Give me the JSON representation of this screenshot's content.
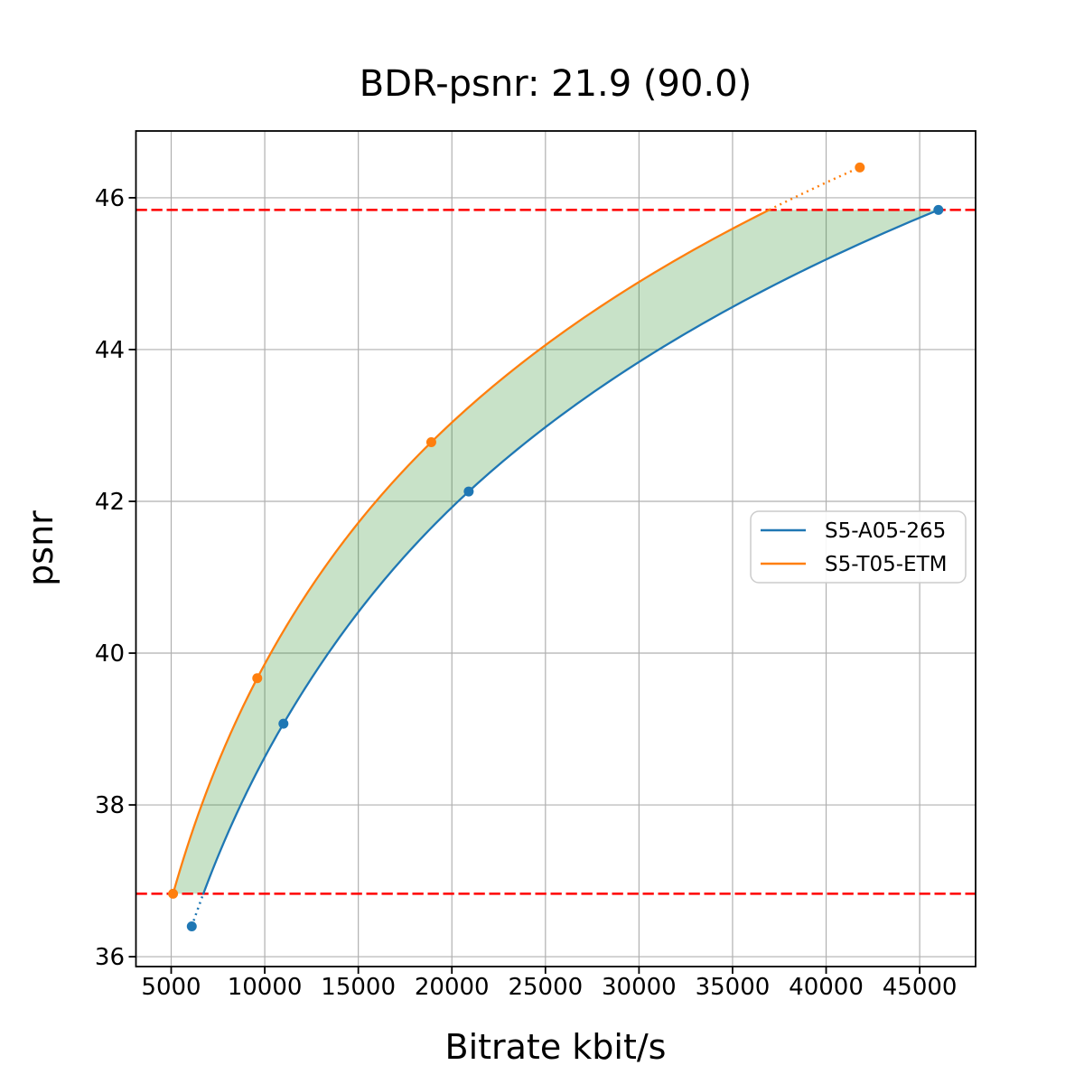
{
  "chart_data": {
    "type": "line",
    "title": "BDR-psnr: 21.9 (90.0)",
    "xlabel": "Bitrate kbit/s",
    "ylabel": "psnr",
    "xlim": [
      3117,
      47988
    ],
    "ylim": [
      35.87,
      46.88
    ],
    "xticks": [
      5000,
      10000,
      15000,
      20000,
      25000,
      30000,
      35000,
      40000,
      45000
    ],
    "yticks": [
      36,
      38,
      40,
      42,
      44,
      46
    ],
    "grid": true,
    "grid_color": "#b0b0b0",
    "legend_position": "center-right",
    "series": [
      {
        "name": "S5-A05-265",
        "color": "#1f77b4",
        "x": [
          6100,
          11000,
          20900,
          46000
        ],
        "y": [
          36.4,
          39.07,
          42.13,
          45.84
        ]
      },
      {
        "name": "S5-T05-ETM",
        "color": "#ff7f0e",
        "x": [
          5100,
          9600,
          18900,
          41800
        ],
        "y": [
          36.83,
          39.67,
          42.78,
          46.4
        ]
      }
    ],
    "overlap_interval_psnr": [
      36.83,
      45.84
    ],
    "reference_lines": {
      "y": [
        36.83,
        45.84
      ],
      "color": "#ff0000",
      "style": "dashed"
    },
    "shaded_area_color": "rgba(34,139,34,0.25)",
    "interpolation": "pchip-log-rate"
  }
}
